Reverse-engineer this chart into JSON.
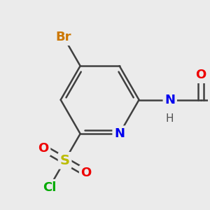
{
  "bg_color": "#ebebeb",
  "atom_colors": {
    "C": "#303030",
    "N": "#0000ee",
    "O": "#ee0000",
    "S": "#bbbb00",
    "Cl": "#00aa00",
    "Br": "#cc7700",
    "H": "#505050"
  },
  "bond_color": "#404040",
  "bond_lw": 1.8,
  "fs_main": 13,
  "fs_small": 11
}
